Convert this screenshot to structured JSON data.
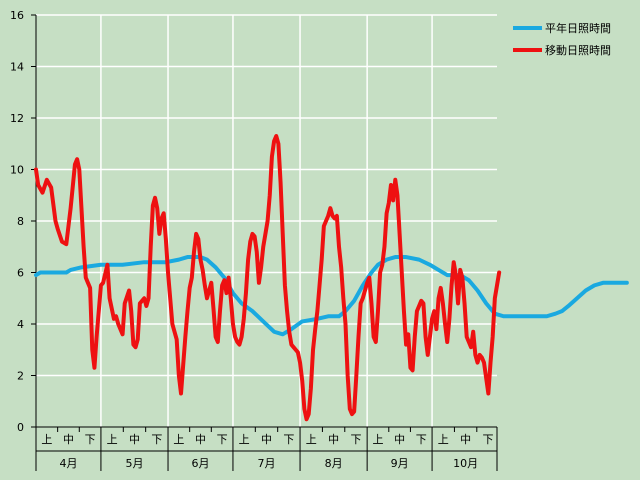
{
  "chart_data": {
    "type": "line",
    "ylim": [
      0,
      16
    ],
    "y_ticks": [
      0,
      2,
      4,
      6,
      8,
      10,
      12,
      14,
      16
    ],
    "grid": true,
    "legend_position": "top-right",
    "x_axis": {
      "subdivisions": [
        "上",
        "中",
        "下"
      ],
      "months": [
        "4月",
        "5月",
        "6月",
        "7月",
        "8月",
        "9月",
        "10月"
      ],
      "days_per_month": [
        30,
        31,
        30,
        31,
        31,
        30,
        31
      ]
    },
    "series": [
      {
        "name": "平年日照時間",
        "color": "#1aa9e0",
        "points": [
          [
            0,
            5.9
          ],
          [
            2,
            6.0
          ],
          [
            10,
            6.0
          ],
          [
            14,
            6.0
          ],
          [
            16,
            6.1
          ],
          [
            21,
            6.2
          ],
          [
            30,
            6.3
          ],
          [
            40,
            6.3
          ],
          [
            50,
            6.4
          ],
          [
            60,
            6.4
          ],
          [
            66,
            6.5
          ],
          [
            70,
            6.6
          ],
          [
            76,
            6.6
          ],
          [
            79,
            6.5
          ],
          [
            83,
            6.2
          ],
          [
            87,
            5.8
          ],
          [
            91,
            5.2
          ],
          [
            95,
            4.8
          ],
          [
            100,
            4.5
          ],
          [
            105,
            4.1
          ],
          [
            110,
            3.7
          ],
          [
            114,
            3.6
          ],
          [
            118,
            3.8
          ],
          [
            123,
            4.1
          ],
          [
            130,
            4.2
          ],
          [
            135,
            4.3
          ],
          [
            140,
            4.3
          ],
          [
            143,
            4.5
          ],
          [
            147,
            4.9
          ],
          [
            151,
            5.5
          ],
          [
            155,
            6.0
          ],
          [
            158,
            6.3
          ],
          [
            162,
            6.5
          ],
          [
            166,
            6.6
          ],
          [
            171,
            6.6
          ],
          [
            177,
            6.5
          ],
          [
            182,
            6.3
          ],
          [
            186,
            6.1
          ],
          [
            190,
            5.9
          ],
          [
            196,
            5.9
          ],
          [
            200,
            5.7
          ],
          [
            204,
            5.3
          ],
          [
            208,
            4.8
          ],
          [
            212,
            4.4
          ],
          [
            216,
            4.3
          ],
          [
            222,
            4.3
          ],
          [
            230,
            4.3
          ],
          [
            236,
            4.3
          ],
          [
            240,
            4.4
          ],
          [
            243,
            4.5
          ],
          [
            246,
            4.7
          ],
          [
            250,
            5.0
          ],
          [
            254,
            5.3
          ],
          [
            258,
            5.5
          ],
          [
            262,
            5.6
          ],
          [
            265,
            5.6
          ],
          [
            268,
            5.6
          ],
          [
            272,
            5.6
          ],
          [
            273,
            5.6
          ]
        ]
      },
      {
        "name": "移動日照時間",
        "color": "#ee1111",
        "points": [
          [
            0,
            10.0
          ],
          [
            1,
            9.4
          ],
          [
            3,
            9.1
          ],
          [
            5,
            9.6
          ],
          [
            7,
            9.3
          ],
          [
            9,
            8.0
          ],
          [
            10,
            7.7
          ],
          [
            12,
            7.2
          ],
          [
            14,
            7.1
          ],
          [
            16,
            8.5
          ],
          [
            18,
            10.2
          ],
          [
            19,
            10.4
          ],
          [
            20,
            10.0
          ],
          [
            21,
            8.5
          ],
          [
            22,
            7.0
          ],
          [
            23,
            5.8
          ],
          [
            24,
            5.6
          ],
          [
            25,
            5.4
          ],
          [
            26,
            3.0
          ],
          [
            27,
            2.3
          ],
          [
            28,
            3.5
          ],
          [
            30,
            5.5
          ],
          [
            31,
            5.6
          ],
          [
            33,
            6.3
          ],
          [
            34,
            5.0
          ],
          [
            36,
            4.2
          ],
          [
            37,
            4.3
          ],
          [
            38,
            4.0
          ],
          [
            40,
            3.6
          ],
          [
            41,
            4.8
          ],
          [
            43,
            5.3
          ],
          [
            44,
            4.5
          ],
          [
            45,
            3.2
          ],
          [
            46,
            3.1
          ],
          [
            47,
            3.4
          ],
          [
            48,
            4.8
          ],
          [
            50,
            5.0
          ],
          [
            51,
            4.7
          ],
          [
            52,
            5.0
          ],
          [
            53,
            7.0
          ],
          [
            54,
            8.6
          ],
          [
            55,
            8.9
          ],
          [
            56,
            8.5
          ],
          [
            57,
            7.5
          ],
          [
            58,
            8.1
          ],
          [
            59,
            8.3
          ],
          [
            60,
            7.3
          ],
          [
            61,
            6.0
          ],
          [
            62,
            5.0
          ],
          [
            63,
            4.0
          ],
          [
            64,
            3.7
          ],
          [
            65,
            3.4
          ],
          [
            66,
            2.0
          ],
          [
            67,
            1.3
          ],
          [
            68,
            2.4
          ],
          [
            69,
            3.5
          ],
          [
            70,
            4.5
          ],
          [
            71,
            5.4
          ],
          [
            72,
            5.8
          ],
          [
            73,
            6.8
          ],
          [
            74,
            7.5
          ],
          [
            75,
            7.3
          ],
          [
            76,
            6.5
          ],
          [
            77,
            6.1
          ],
          [
            78,
            5.5
          ],
          [
            79,
            5.0
          ],
          [
            80,
            5.3
          ],
          [
            81,
            5.6
          ],
          [
            82,
            4.6
          ],
          [
            83,
            3.5
          ],
          [
            84,
            3.3
          ],
          [
            85,
            4.5
          ],
          [
            86,
            5.5
          ],
          [
            87,
            5.7
          ],
          [
            88,
            5.2
          ],
          [
            89,
            5.8
          ],
          [
            90,
            5.0
          ],
          [
            91,
            4.0
          ],
          [
            92,
            3.5
          ],
          [
            93,
            3.3
          ],
          [
            94,
            3.2
          ],
          [
            95,
            3.5
          ],
          [
            96,
            4.2
          ],
          [
            97,
            5.2
          ],
          [
            98,
            6.5
          ],
          [
            99,
            7.2
          ],
          [
            100,
            7.5
          ],
          [
            101,
            7.4
          ],
          [
            102,
            6.8
          ],
          [
            103,
            5.6
          ],
          [
            104,
            6.2
          ],
          [
            105,
            7.0
          ],
          [
            106,
            7.5
          ],
          [
            107,
            8.0
          ],
          [
            108,
            9.0
          ],
          [
            109,
            10.5
          ],
          [
            110,
            11.1
          ],
          [
            111,
            11.3
          ],
          [
            112,
            11.0
          ],
          [
            113,
            9.5
          ],
          [
            114,
            7.5
          ],
          [
            115,
            5.5
          ],
          [
            116,
            4.5
          ],
          [
            117,
            3.7
          ],
          [
            118,
            3.2
          ],
          [
            119,
            3.1
          ],
          [
            120,
            3.0
          ],
          [
            121,
            2.9
          ],
          [
            122,
            2.5
          ],
          [
            123,
            1.8
          ],
          [
            124,
            0.7
          ],
          [
            125,
            0.3
          ],
          [
            126,
            0.5
          ],
          [
            127,
            1.5
          ],
          [
            128,
            3.0
          ],
          [
            129,
            3.8
          ],
          [
            130,
            4.5
          ],
          [
            131,
            5.5
          ],
          [
            132,
            6.5
          ],
          [
            133,
            7.8
          ],
          [
            134,
            8.0
          ],
          [
            135,
            8.2
          ],
          [
            136,
            8.5
          ],
          [
            137,
            8.2
          ],
          [
            138,
            8.1
          ],
          [
            139,
            8.2
          ],
          [
            140,
            7.0
          ],
          [
            141,
            6.2
          ],
          [
            142,
            5.0
          ],
          [
            143,
            4.0
          ],
          [
            144,
            2.0
          ],
          [
            145,
            0.7
          ],
          [
            146,
            0.5
          ],
          [
            147,
            0.6
          ],
          [
            148,
            2.0
          ],
          [
            149,
            3.5
          ],
          [
            150,
            4.8
          ],
          [
            151,
            5.0
          ],
          [
            152,
            5.3
          ],
          [
            153,
            5.6
          ],
          [
            154,
            5.8
          ],
          [
            155,
            4.8
          ],
          [
            156,
            3.5
          ],
          [
            157,
            3.3
          ],
          [
            158,
            4.5
          ],
          [
            159,
            6.0
          ],
          [
            160,
            6.3
          ],
          [
            161,
            7.0
          ],
          [
            162,
            8.3
          ],
          [
            163,
            8.7
          ],
          [
            164,
            9.4
          ],
          [
            165,
            8.8
          ],
          [
            166,
            9.6
          ],
          [
            167,
            9.0
          ],
          [
            168,
            7.5
          ],
          [
            169,
            6.0
          ],
          [
            170,
            4.5
          ],
          [
            171,
            3.2
          ],
          [
            172,
            3.6
          ],
          [
            173,
            2.3
          ],
          [
            174,
            2.2
          ],
          [
            175,
            3.5
          ],
          [
            176,
            4.5
          ],
          [
            177,
            4.7
          ],
          [
            178,
            4.9
          ],
          [
            179,
            4.8
          ],
          [
            180,
            3.5
          ],
          [
            181,
            2.8
          ],
          [
            182,
            3.5
          ],
          [
            183,
            4.2
          ],
          [
            184,
            4.5
          ],
          [
            185,
            3.8
          ],
          [
            186,
            5.0
          ],
          [
            187,
            5.4
          ],
          [
            188,
            4.8
          ],
          [
            189,
            4.0
          ],
          [
            190,
            3.3
          ],
          [
            191,
            4.2
          ],
          [
            192,
            5.5
          ],
          [
            193,
            6.4
          ],
          [
            194,
            5.9
          ],
          [
            195,
            4.8
          ],
          [
            196,
            6.1
          ],
          [
            197,
            5.8
          ],
          [
            198,
            4.8
          ],
          [
            199,
            3.5
          ],
          [
            200,
            3.3
          ],
          [
            201,
            3.1
          ],
          [
            202,
            3.7
          ],
          [
            203,
            2.8
          ],
          [
            204,
            2.5
          ],
          [
            205,
            2.8
          ],
          [
            206,
            2.7
          ],
          [
            207,
            2.5
          ],
          [
            208,
            1.9
          ],
          [
            209,
            1.3
          ],
          [
            210,
            2.5
          ],
          [
            211,
            3.5
          ],
          [
            212,
            5.0
          ],
          [
            213,
            5.5
          ],
          [
            214,
            6.0
          ]
        ]
      }
    ]
  }
}
